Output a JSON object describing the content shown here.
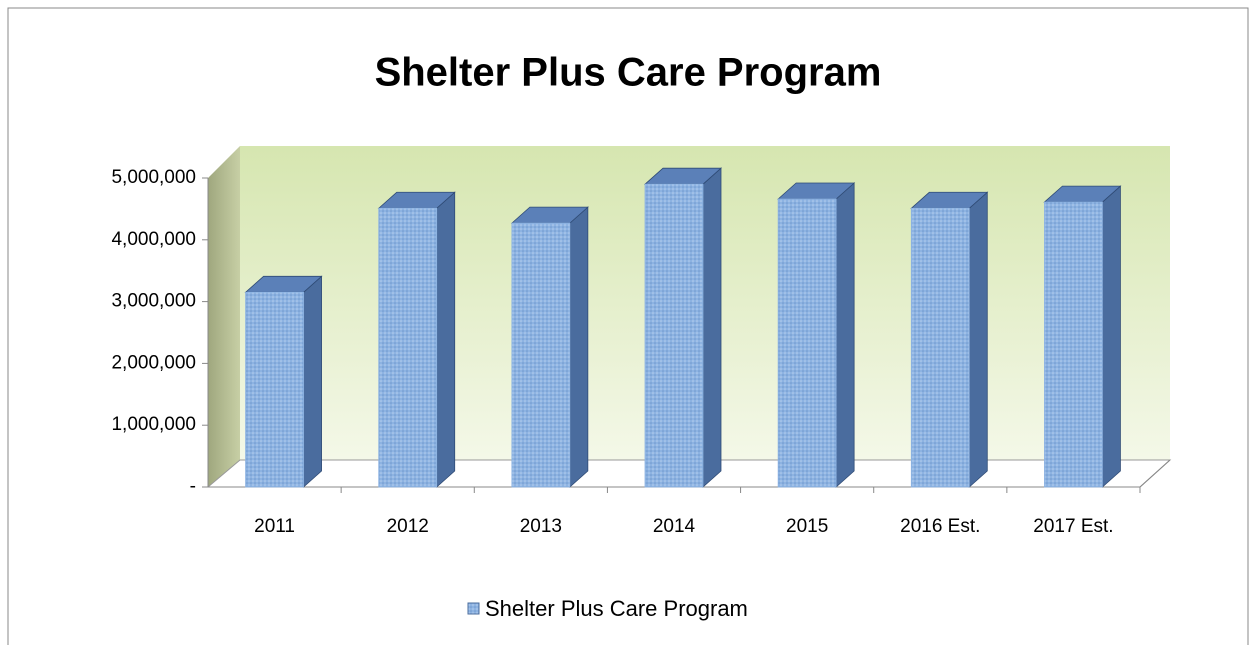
{
  "chart_data": {
    "type": "bar3d",
    "title": "Shelter Plus Care Program",
    "categories": [
      "2011",
      "2012",
      "2013",
      "2014",
      "2015",
      "2016 Est.",
      "2017 Est."
    ],
    "series": [
      {
        "name": "Shelter Plus Care Program",
        "color": "#8db3e2",
        "values": [
          3150000,
          4510000,
          4270000,
          4900000,
          4660000,
          4510000,
          4610000
        ]
      }
    ],
    "ylim": [
      0,
      5000000
    ],
    "yticks": [
      {
        "value": 0,
        "label": "-"
      },
      {
        "value": 1000000,
        "label": "1,000,000"
      },
      {
        "value": 2000000,
        "label": "2,000,000"
      },
      {
        "value": 3000000,
        "label": "3,000,000"
      },
      {
        "value": 4000000,
        "label": "4,000,000"
      },
      {
        "value": 5000000,
        "label": "5,000,000"
      }
    ],
    "legend": "bottom"
  }
}
